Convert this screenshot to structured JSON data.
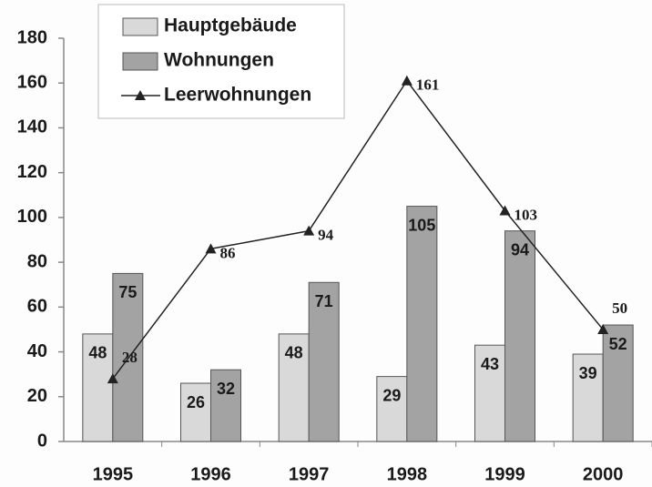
{
  "chart_data": {
    "type": "bar",
    "categories": [
      "1995",
      "1996",
      "1997",
      "1998",
      "1999",
      "2000"
    ],
    "series": [
      {
        "name": "Hauptgebäude",
        "type": "bar",
        "color": "#d9d9d9",
        "values": [
          48,
          26,
          48,
          29,
          43,
          39
        ]
      },
      {
        "name": "Wohnungen",
        "type": "bar",
        "color": "#a3a3a3",
        "values": [
          75,
          32,
          71,
          105,
          94,
          52
        ]
      },
      {
        "name": "Leerwohnungen",
        "type": "line",
        "color": "#222222",
        "values": [
          28,
          86,
          94,
          161,
          103,
          50
        ]
      }
    ],
    "ylim": [
      0,
      180
    ],
    "yticks": [
      0,
      20,
      40,
      60,
      80,
      100,
      120,
      140,
      160,
      180
    ],
    "grid": false,
    "legend": "top-left"
  }
}
